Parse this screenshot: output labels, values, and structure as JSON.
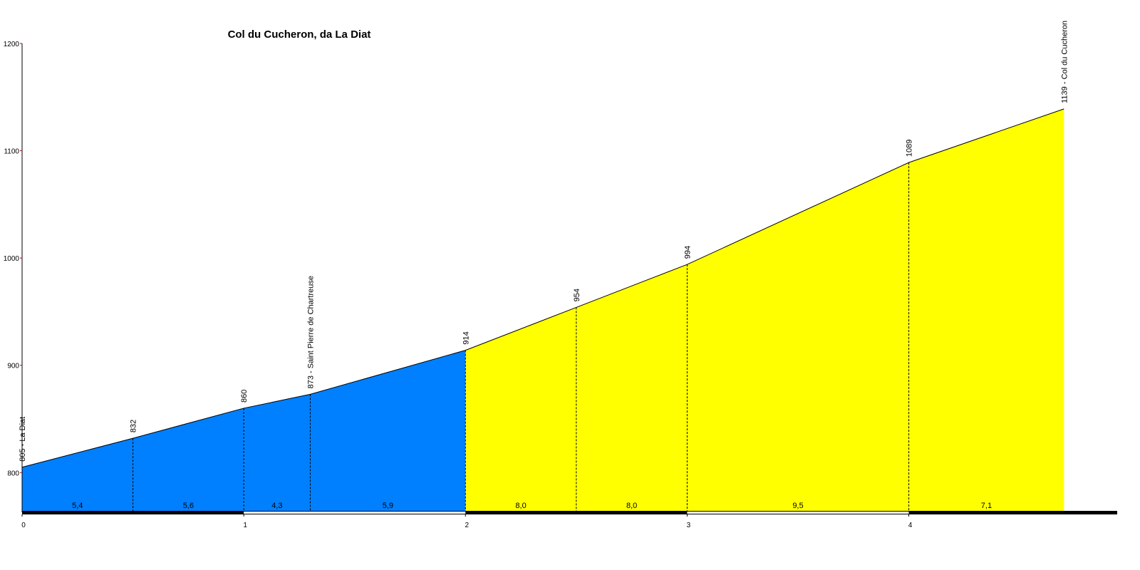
{
  "chart_data": {
    "type": "elevation-profile",
    "title": "Col du Cucheron, da La Diat",
    "x": [
      0,
      0.5,
      1,
      1.3,
      2,
      2.5,
      3,
      4,
      4.7
    ],
    "values": [
      805,
      832,
      860,
      873,
      914,
      954,
      994,
      1089,
      1139
    ],
    "value_labels": [
      "805 - La Diat",
      "832",
      "860",
      "873 - Saint Pierre de Chartreuse",
      "914",
      "954",
      "994",
      "1089",
      "1139 - Col du Cucheron"
    ],
    "segment_labels": [
      "5,4",
      "5,6",
      "4,3",
      "5,9",
      "8,0",
      "8,0",
      "9,5",
      "7,1"
    ],
    "segment_colors": [
      "#0080ff",
      "#0080ff",
      "#0080ff",
      "#0080ff",
      "#ffff00",
      "#ffff00",
      "#ffff00",
      "#ffff00"
    ],
    "xlim": [
      0,
      4.94
    ],
    "xticks": [
      0,
      1,
      2,
      3,
      4
    ],
    "ylim": [
      763,
      1200
    ],
    "yticks": [
      800,
      900,
      1000,
      1100,
      1200
    ]
  }
}
